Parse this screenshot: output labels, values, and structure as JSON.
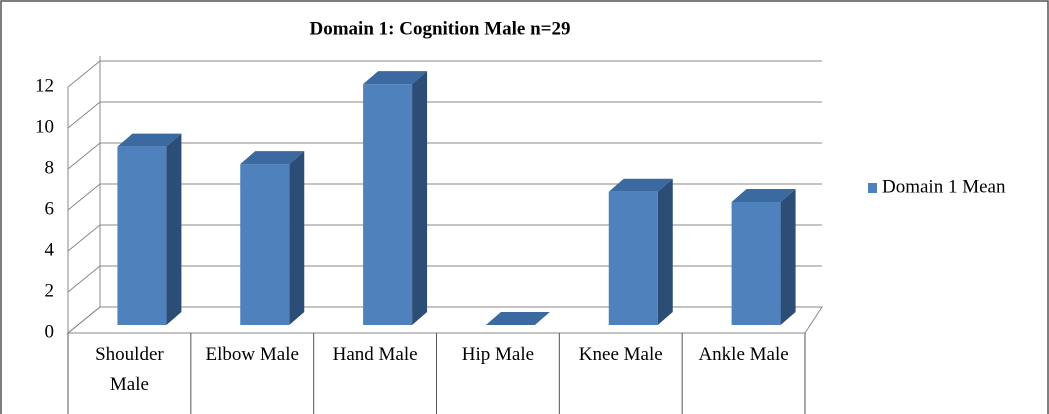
{
  "chart_data": {
    "type": "bar3d",
    "title": "Domain 1: Cognition Male n=29",
    "categories": [
      "Shoulder Male",
      "Elbow Male",
      "Hand Male",
      "Hip Male",
      "Knee Male",
      "Ankle Male"
    ],
    "series": [
      {
        "name": "Domain 1 Mean",
        "color": "#4f81bd",
        "values": [
          8.7,
          7.85,
          11.75,
          0,
          6.5,
          6.0
        ]
      }
    ],
    "ylim": [
      0,
      12
    ],
    "yticks": [
      0,
      2,
      4,
      6,
      8,
      10,
      12
    ],
    "grid": true,
    "legend": "right"
  }
}
